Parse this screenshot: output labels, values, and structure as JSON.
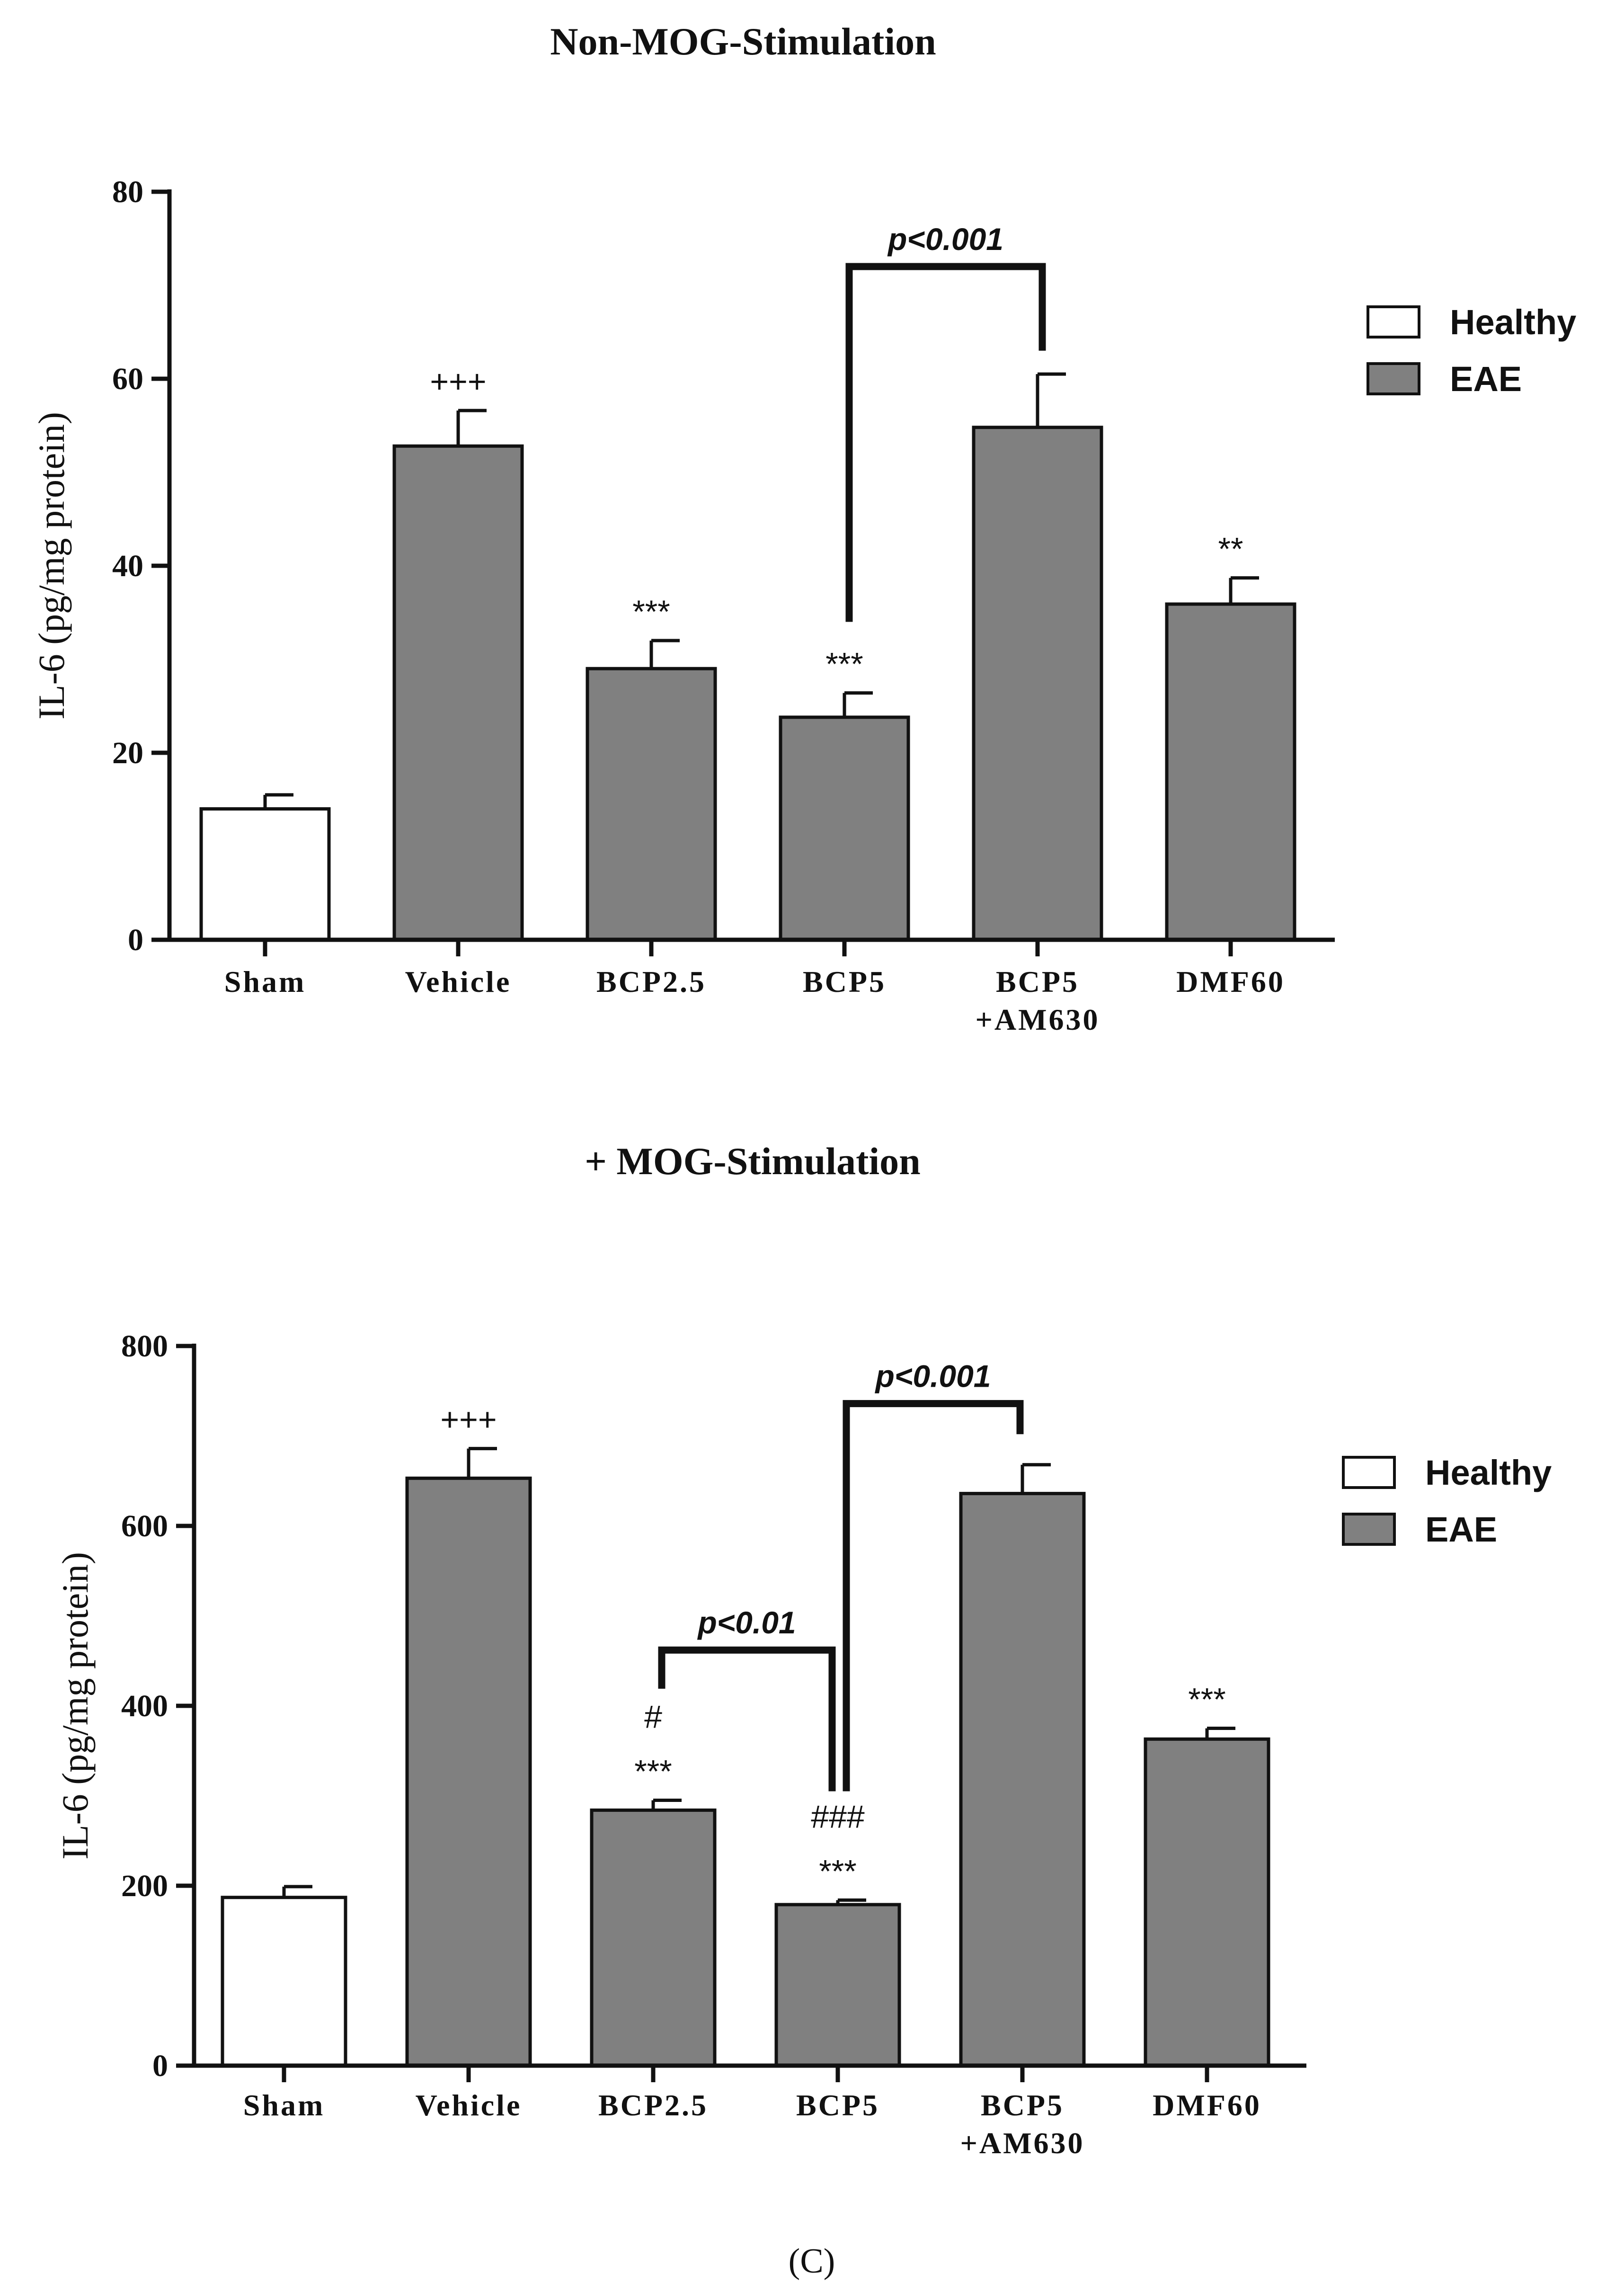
{
  "figure": {
    "caption": "(C)",
    "colors": {
      "healthy": "#ffffff",
      "eae": "#808080",
      "stroke": "#111111"
    }
  },
  "chart_data": [
    {
      "type": "bar",
      "title": "Non-MOG-Stimulation",
      "ylabel": "IL-6 (pg/mg protein)",
      "xlabel": "",
      "ylim": [
        0,
        80
      ],
      "yticks": [
        "0",
        "20",
        "40",
        "60",
        "80"
      ],
      "categories": [
        [
          "Sham"
        ],
        [
          "Vehicle"
        ],
        [
          "BCP2.5"
        ],
        [
          "BCP5"
        ],
        [
          "BCP5",
          "+AM630"
        ],
        [
          "DMF60"
        ]
      ],
      "values": [
        14,
        52.8,
        29,
        23.8,
        54.8,
        35.9
      ],
      "errors": [
        1.5,
        3.8,
        3,
        2.6,
        5.7,
        2.8
      ],
      "groups": [
        "Healthy",
        "EAE",
        "EAE",
        "EAE",
        "EAE",
        "EAE"
      ],
      "annotations": [
        [],
        [
          "+++"
        ],
        [
          "***"
        ],
        [
          "***"
        ],
        [],
        [
          "**"
        ]
      ],
      "brackets": [
        {
          "from": 3,
          "to": 4,
          "label": "p<0.001",
          "y": 72
        }
      ],
      "legend": {
        "position": "right",
        "entries": [
          "Healthy",
          "EAE"
        ]
      }
    },
    {
      "type": "bar",
      "title": "+ MOG-Stimulation",
      "ylabel": "IL-6 (pg/mg protein)",
      "xlabel": "",
      "ylim": [
        0,
        800
      ],
      "yticks": [
        "0",
        "200",
        "400",
        "600",
        "800"
      ],
      "categories": [
        [
          "Sham"
        ],
        [
          "Vehicle"
        ],
        [
          "BCP2.5"
        ],
        [
          "BCP5"
        ],
        [
          "BCP5",
          "+AM630"
        ],
        [
          "DMF60"
        ]
      ],
      "values": [
        187,
        653,
        284,
        179,
        636,
        363
      ],
      "errors": [
        12,
        33,
        11,
        5,
        32,
        12
      ],
      "groups": [
        "Healthy",
        "EAE",
        "EAE",
        "EAE",
        "EAE",
        "EAE"
      ],
      "annotations": [
        [],
        [
          "+++"
        ],
        [
          "#",
          "***"
        ],
        [
          "###",
          "***"
        ],
        [],
        [
          "***"
        ]
      ],
      "brackets": [
        {
          "from": 3,
          "to": 4,
          "label": "p<0.001",
          "y": 736
        },
        {
          "from": 2,
          "to": 3,
          "label": "p<0.01",
          "y": 462
        }
      ],
      "legend": {
        "position": "right",
        "entries": [
          "Healthy",
          "EAE"
        ]
      }
    }
  ]
}
